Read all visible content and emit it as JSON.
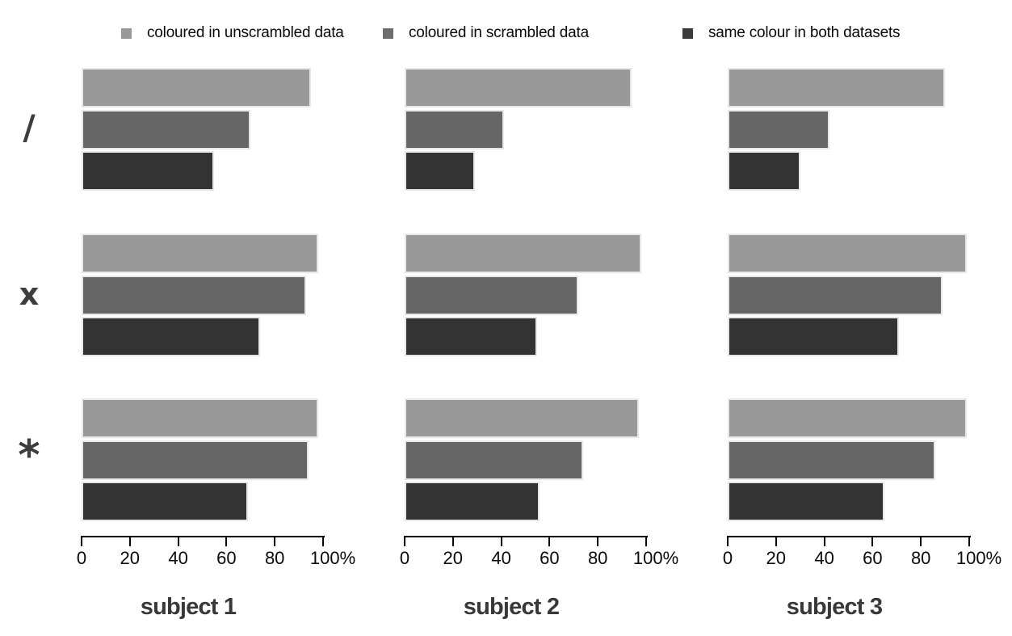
{
  "legend": {
    "items": [
      {
        "label": "coloured in unscrambled data",
        "color": "#999999"
      },
      {
        "label": "coloured in scrambled data",
        "color": "#6e6e6e"
      },
      {
        "label": "same colour in both datasets",
        "color": "#3c3c3c"
      }
    ]
  },
  "colors": {
    "bar_light": "#999999",
    "bar_medium": "#666666",
    "bar_dark": "#333333",
    "axis": "#000000",
    "category_label": "#3d3d3d"
  },
  "chart_data": {
    "type": "bar",
    "orientation": "horizontal",
    "value_unit": "%",
    "xlim": [
      0,
      100
    ],
    "x_tick_values": [
      0,
      20,
      40,
      60,
      80,
      100
    ],
    "x_tick_labels": [
      "0",
      "20",
      "40",
      "60",
      "80",
      "100%"
    ],
    "grid": false,
    "legend_position": "top",
    "row_categories": [
      "/",
      "x",
      "*"
    ],
    "column_categories": [
      "subject 1",
      "subject 2",
      "subject 3"
    ],
    "series_names": [
      "coloured in unscrambled data",
      "coloured in scrambled data",
      "same colour in both datasets"
    ],
    "series_colors": [
      "#999999",
      "#666666",
      "#333333"
    ],
    "panels": [
      {
        "subject": "subject 1",
        "groups": [
          {
            "row": "/",
            "values": [
              95,
              70,
              55
            ]
          },
          {
            "row": "x",
            "values": [
              98,
              93,
              74
            ]
          },
          {
            "row": "*",
            "values": [
              98,
              94,
              69
            ]
          }
        ]
      },
      {
        "subject": "subject 2",
        "groups": [
          {
            "row": "/",
            "values": [
              94,
              41,
              29
            ]
          },
          {
            "row": "x",
            "values": [
              98,
              72,
              55
            ]
          },
          {
            "row": "*",
            "values": [
              97,
              74,
              56
            ]
          }
        ]
      },
      {
        "subject": "subject 3",
        "groups": [
          {
            "row": "/",
            "values": [
              90,
              42,
              30
            ]
          },
          {
            "row": "x",
            "values": [
              99,
              89,
              71
            ]
          },
          {
            "row": "*",
            "values": [
              99,
              86,
              65
            ]
          }
        ]
      }
    ]
  }
}
